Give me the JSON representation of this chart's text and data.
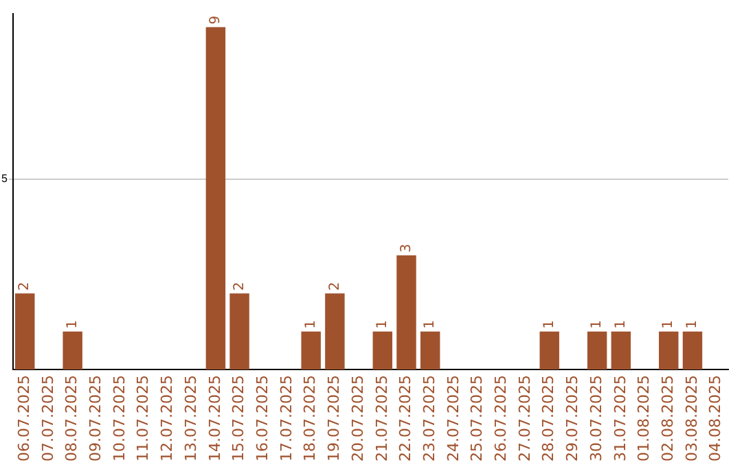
{
  "chart_data": {
    "type": "bar",
    "categories": [
      "06.07.2025",
      "07.07.2025",
      "08.07.2025",
      "09.07.2025",
      "10.07.2025",
      "11.07.2025",
      "12.07.2025",
      "13.07.2025",
      "14.07.2025",
      "15.07.2025",
      "16.07.2025",
      "17.07.2025",
      "18.07.2025",
      "19.07.2025",
      "20.07.2025",
      "21.07.2025",
      "22.07.2025",
      "23.07.2025",
      "24.07.2025",
      "25.07.2025",
      "26.07.2025",
      "27.07.2025",
      "28.07.2025",
      "29.07.2025",
      "30.07.2025",
      "31.07.2025",
      "01.08.2025",
      "02.08.2025",
      "03.08.2025",
      "04.08.2025"
    ],
    "values": [
      2,
      0,
      1,
      0,
      0,
      0,
      0,
      0,
      9,
      2,
      0,
      0,
      1,
      2,
      0,
      1,
      3,
      1,
      0,
      0,
      0,
      0,
      1,
      0,
      1,
      1,
      0,
      1,
      1,
      0
    ],
    "value_labels": [
      "2",
      null,
      "1",
      null,
      null,
      null,
      null,
      null,
      "9",
      "2",
      null,
      null,
      "1",
      "2",
      null,
      "1",
      "3",
      "1",
      null,
      null,
      null,
      null,
      "1",
      null,
      "1",
      "1",
      null,
      "1",
      "1",
      null
    ],
    "color": "#a0522d",
    "ylim": [
      0,
      9.35
    ],
    "yticks": [
      5
    ],
    "grid": "y",
    "legend": false
  }
}
